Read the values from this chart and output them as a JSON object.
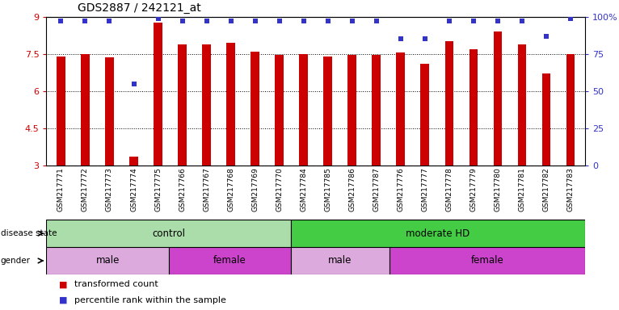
{
  "title": "GDS2887 / 242121_at",
  "samples": [
    "GSM217771",
    "GSM217772",
    "GSM217773",
    "GSM217774",
    "GSM217775",
    "GSM217766",
    "GSM217767",
    "GSM217768",
    "GSM217769",
    "GSM217770",
    "GSM217784",
    "GSM217785",
    "GSM217786",
    "GSM217787",
    "GSM217776",
    "GSM217777",
    "GSM217778",
    "GSM217779",
    "GSM217780",
    "GSM217781",
    "GSM217782",
    "GSM217783"
  ],
  "bar_values": [
    7.4,
    7.5,
    7.35,
    3.35,
    8.75,
    7.9,
    7.9,
    7.95,
    7.6,
    7.45,
    7.5,
    7.4,
    7.45,
    7.45,
    7.55,
    7.1,
    8.0,
    7.7,
    8.4,
    7.9,
    6.7,
    7.5
  ],
  "percentile_values": [
    97,
    97,
    97,
    55,
    99,
    97,
    97,
    97,
    97,
    97,
    97,
    97,
    97,
    97,
    85,
    85,
    97,
    97,
    97,
    97,
    87,
    99
  ],
  "bar_color": "#cc0000",
  "dot_color": "#3333cc",
  "ylim_left": [
    3,
    9
  ],
  "ylim_right": [
    0,
    100
  ],
  "yticks_left": [
    3,
    4.5,
    6,
    7.5,
    9
  ],
  "yticks_right": [
    0,
    25,
    50,
    75,
    100
  ],
  "ytick_labels_left": [
    "3",
    "4.5",
    "6",
    "7.5",
    "9"
  ],
  "ytick_labels_right": [
    "0",
    "25",
    "50",
    "75",
    "100%"
  ],
  "disease_state_groups": [
    {
      "label": "control",
      "start": 0,
      "end": 10,
      "color": "#aaddaa"
    },
    {
      "label": "moderate HD",
      "start": 10,
      "end": 22,
      "color": "#44cc44"
    }
  ],
  "gender_groups": [
    {
      "label": "male",
      "start": 0,
      "end": 5,
      "color": "#ddaadd"
    },
    {
      "label": "female",
      "start": 5,
      "end": 10,
      "color": "#cc44cc"
    },
    {
      "label": "male",
      "start": 10,
      "end": 14,
      "color": "#ddaadd"
    },
    {
      "label": "female",
      "start": 14,
      "end": 22,
      "color": "#cc44cc"
    }
  ],
  "bar_width": 0.35,
  "background_color": "#ffffff",
  "left_tick_color": "#cc0000",
  "right_tick_color": "#3333cc",
  "xlabel_bg_color": "#c8c8c8",
  "xlabel_sep_color": "#ffffff"
}
